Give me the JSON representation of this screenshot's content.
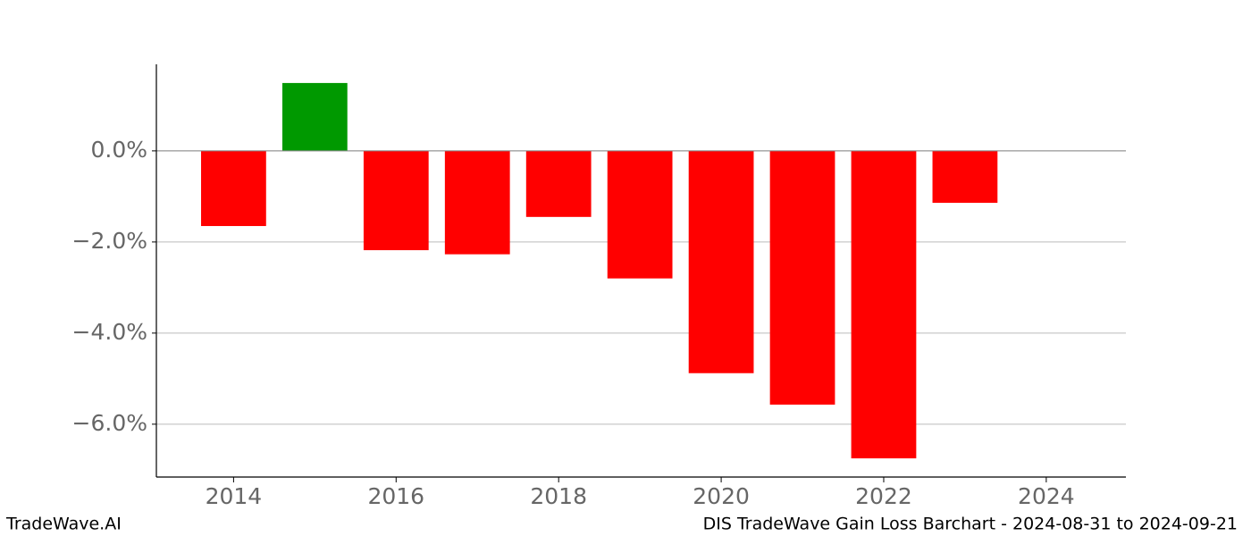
{
  "chart_data": {
    "type": "bar",
    "title": "DIS TradeWave Gain Loss Barchart - 2024-08-31 to 2024-09-21",
    "watermark": "TradeWave.AI",
    "x": [
      2014,
      2015,
      2016,
      2017,
      2018,
      2019,
      2020,
      2021,
      2022,
      2023
    ],
    "values": [
      -1.65,
      1.49,
      -2.18,
      -2.27,
      -1.45,
      -2.8,
      -4.88,
      -5.57,
      -6.75,
      -1.14
    ],
    "colors": [
      "#ff0000",
      "#009900",
      "#ff0000",
      "#ff0000",
      "#ff0000",
      "#ff0000",
      "#ff0000",
      "#ff0000",
      "#ff0000",
      "#ff0000"
    ],
    "xlim": [
      2013.05,
      2024.98
    ],
    "xticks": [
      2014,
      2016,
      2018,
      2020,
      2022,
      2024
    ],
    "ylim": [
      -7.16,
      1.9
    ],
    "yticks": [
      {
        "value": 0,
        "label": "0.0%"
      },
      {
        "value": -2,
        "label": "−2.0%"
      },
      {
        "value": -4,
        "label": "−4.0%"
      },
      {
        "value": -6,
        "label": "−6.0%"
      }
    ],
    "grid": true
  }
}
